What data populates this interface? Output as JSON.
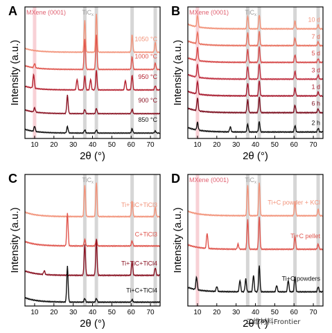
{
  "figure": {
    "watermark": "二维材料Frontier"
  },
  "colors": {
    "mxene_band": "#f7c9cf",
    "tic_band": "#cfcfcf",
    "mxene_text": "#e06070",
    "tic_text": "#9a9a9a"
  },
  "chart_data": [
    {
      "panel": "A",
      "type": "line",
      "title": "",
      "xlabel": "2θ (°)",
      "ylabel": "Intensity (a.u.)",
      "xlim": [
        5,
        75
      ],
      "xticks": [
        10,
        20,
        30,
        40,
        50,
        60,
        70
      ],
      "yticks": [],
      "bands": [
        {
          "label": "MXene (0001)",
          "x": 10,
          "color": "#f7c9cf",
          "label_color": "#e06070"
        },
        {
          "label": "TiCx",
          "x": 36,
          "color": "#cfcfcf",
          "label_color": "#9a9a9a"
        },
        {
          "label": "",
          "x": 42,
          "color": "#cfcfcf"
        },
        {
          "label": "",
          "x": 60.5,
          "color": "#cfcfcf"
        },
        {
          "label": "",
          "x": 72.5,
          "color": "#cfcfcf"
        }
      ],
      "series": [
        {
          "name": "1050 °C",
          "color": "#f2937a",
          "offset": 8,
          "peaks": [
            [
              36,
              3.0
            ],
            [
              42,
              3.6
            ],
            [
              60.5,
              1.6
            ],
            [
              72.5,
              0.9
            ]
          ]
        },
        {
          "name": "1000 °C",
          "color": "#e0564e",
          "offset": 6.4,
          "peaks": [
            [
              10,
              0.4
            ],
            [
              36,
              2.8
            ],
            [
              42,
              3.2
            ],
            [
              60.5,
              1.2
            ],
            [
              72.5,
              0.6
            ]
          ]
        },
        {
          "name": "950 °C",
          "color": "#b4202e",
          "offset": 4.5,
          "peaks": [
            [
              9.5,
              1.3
            ],
            [
              32,
              1.0
            ],
            [
              36,
              1.3
            ],
            [
              39,
              1.0
            ],
            [
              42,
              1.8
            ],
            [
              57,
              0.9
            ],
            [
              60.5,
              1.4
            ],
            [
              72.5,
              0.4
            ]
          ]
        },
        {
          "name": "900 °C",
          "color": "#8a1424",
          "offset": 2.3,
          "peaks": [
            [
              10,
              0.4
            ],
            [
              27,
              1.7
            ],
            [
              36,
              0.4
            ],
            [
              42,
              0.5
            ],
            [
              60.5,
              0.4
            ]
          ]
        },
        {
          "name": "850 °C",
          "color": "#111111",
          "offset": 0.5,
          "peaks": [
            [
              10,
              0.5
            ],
            [
              27,
              0.6
            ],
            [
              36,
              0.3
            ],
            [
              42,
              0.3
            ],
            [
              60.5,
              0.4
            ],
            [
              72.5,
              0.2
            ]
          ]
        }
      ]
    },
    {
      "panel": "B",
      "type": "line",
      "title": "",
      "xlabel": "2θ (°)",
      "ylabel": "Intensity (a.u.)",
      "xlim": [
        5,
        75
      ],
      "xticks": [
        10,
        20,
        30,
        40,
        50,
        60,
        70
      ],
      "yticks": [],
      "bands": [
        {
          "label": "MXene (0001)",
          "x": 10,
          "color": "#f7c9cf",
          "label_color": "#e06070"
        },
        {
          "label": "TiCx",
          "x": 36,
          "color": "#cfcfcf",
          "label_color": "#9a9a9a"
        },
        {
          "label": "",
          "x": 42,
          "color": "#cfcfcf"
        },
        {
          "label": "",
          "x": 60.5,
          "color": "#cfcfcf"
        },
        {
          "label": "",
          "x": 72.5,
          "color": "#cfcfcf"
        }
      ],
      "series": [
        {
          "name": "10 d",
          "color": "#f2937a",
          "offset": 8.5,
          "peaks": [
            [
              10,
              0.9
            ],
            [
              36,
              1.0
            ],
            [
              42,
              1.1
            ],
            [
              60.5,
              0.6
            ],
            [
              72.5,
              0.3
            ]
          ]
        },
        {
          "name": "7 d",
          "color": "#e8705e",
          "offset": 7.2,
          "peaks": [
            [
              10,
              0.9
            ],
            [
              36,
              1.0
            ],
            [
              42,
              1.1
            ],
            [
              60.5,
              0.6
            ],
            [
              72.5,
              0.3
            ]
          ]
        },
        {
          "name": "5 d",
          "color": "#d64a4a",
          "offset": 5.9,
          "peaks": [
            [
              10,
              1.0
            ],
            [
              36,
              1.0
            ],
            [
              42,
              1.2
            ],
            [
              60.5,
              0.6
            ],
            [
              72.5,
              0.3
            ]
          ]
        },
        {
          "name": "3 d",
          "color": "#c03040",
          "offset": 4.6,
          "peaks": [
            [
              10,
              1.0
            ],
            [
              36,
              1.0
            ],
            [
              42,
              1.2
            ],
            [
              60.5,
              0.6
            ],
            [
              72.5,
              0.3
            ]
          ]
        },
        {
          "name": "1 d",
          "color": "#a81c30",
          "offset": 3.3,
          "peaks": [
            [
              10,
              1.0
            ],
            [
              36,
              1.0
            ],
            [
              42,
              1.2
            ],
            [
              60.5,
              0.6
            ],
            [
              72.5,
              0.3
            ]
          ]
        },
        {
          "name": "6 h",
          "color": "#7c1020",
          "offset": 2.0,
          "peaks": [
            [
              10,
              1.0
            ],
            [
              36,
              1.0
            ],
            [
              42,
              1.2
            ],
            [
              60.5,
              0.6
            ],
            [
              72.5,
              0.3
            ]
          ]
        },
        {
          "name": "2 h",
          "color": "#111111",
          "offset": 0.5,
          "peaks": [
            [
              10,
              0.6
            ],
            [
              27,
              0.4
            ],
            [
              36,
              0.6
            ],
            [
              42,
              0.8
            ],
            [
              60.5,
              0.5
            ],
            [
              72.5,
              0.3
            ]
          ]
        }
      ]
    },
    {
      "panel": "C",
      "type": "line",
      "title": "",
      "xlabel": "2θ (°)",
      "ylabel": "Intensity (a.u.)",
      "xlim": [
        5,
        75
      ],
      "xticks": [
        10,
        20,
        30,
        40,
        50,
        60,
        70
      ],
      "yticks": [],
      "bands": [
        {
          "label": "TiCx",
          "x": 36,
          "color": "#cfcfcf",
          "label_color": "#9a9a9a"
        },
        {
          "label": "",
          "x": 42,
          "color": "#cfcfcf"
        },
        {
          "label": "",
          "x": 60.5,
          "color": "#cfcfcf"
        },
        {
          "label": "",
          "x": 72.5,
          "color": "#cfcfcf"
        }
      ],
      "series": [
        {
          "name": "Ti+TiC+TiCl3",
          "color": "#f2937a",
          "offset": 7.0,
          "peaks": [
            [
              36,
              2.5
            ],
            [
              42,
              2.7
            ],
            [
              60.5,
              1.2
            ],
            [
              72.5,
              0.7
            ]
          ]
        },
        {
          "name": "C+TiCl3",
          "color": "#e0564e",
          "offset": 4.7,
          "peaks": [
            [
              27,
              2.6
            ],
            [
              36,
              0.5
            ],
            [
              42,
              0.5
            ],
            [
              60.5,
              0.4
            ]
          ]
        },
        {
          "name": "Ti+TiC+TiCl4",
          "color": "#8a1424",
          "offset": 2.4,
          "peaks": [
            [
              15,
              0.3
            ],
            [
              36,
              2.4
            ],
            [
              42,
              2.8
            ],
            [
              60.5,
              1.1
            ],
            [
              72.5,
              0.6
            ]
          ]
        },
        {
          "name": "Ti+C+TiCl4",
          "color": "#111111",
          "offset": 0.3,
          "peaks": [
            [
              27,
              2.8
            ],
            [
              36,
              0.3
            ],
            [
              42,
              0.3
            ],
            [
              60.5,
              0.2
            ]
          ]
        }
      ]
    },
    {
      "panel": "D",
      "type": "line",
      "title": "",
      "xlabel": "2θ (°)",
      "ylabel": "Intensity (a.u.)",
      "xlim": [
        5,
        75
      ],
      "xticks": [
        10,
        20,
        30,
        40,
        50,
        60,
        70
      ],
      "yticks": [],
      "bands": [
        {
          "label": "MXene (0001)",
          "x": 10,
          "color": "#f7c9cf",
          "label_color": "#e06070"
        },
        {
          "label": "TiCx",
          "x": 36,
          "color": "#cfcfcf",
          "label_color": "#9a9a9a"
        },
        {
          "label": "",
          "x": 42,
          "color": "#cfcfcf"
        },
        {
          "label": "",
          "x": 60.5,
          "color": "#cfcfcf"
        },
        {
          "label": "",
          "x": 72.5,
          "color": "#cfcfcf"
        }
      ],
      "series": [
        {
          "name": "Ti+C powder + KCl",
          "color": "#f2937a",
          "offset": 7.0,
          "peaks": [
            [
              36,
              2.4
            ],
            [
              42,
              2.6
            ],
            [
              60.5,
              1.1
            ],
            [
              72.5,
              0.5
            ]
          ]
        },
        {
          "name": "Ti+C pellet",
          "color": "#e0564e",
          "offset": 4.4,
          "peaks": [
            [
              15,
              1.2
            ],
            [
              31,
              0.4
            ],
            [
              36,
              2.3
            ],
            [
              42,
              2.5
            ],
            [
              60.5,
              1.0
            ],
            [
              72.5,
              0.4
            ]
          ]
        },
        {
          "name": "Ti+C powders",
          "color": "#111111",
          "offset": 1.1,
          "peaks": [
            [
              9.5,
              1.0
            ],
            [
              20,
              0.4
            ],
            [
              32,
              0.9
            ],
            [
              35,
              1.0
            ],
            [
              39,
              1.3
            ],
            [
              42,
              2.0
            ],
            [
              51,
              0.5
            ],
            [
              57,
              0.9
            ],
            [
              60.5,
              1.2
            ],
            [
              72.5,
              0.4
            ]
          ]
        }
      ]
    }
  ]
}
